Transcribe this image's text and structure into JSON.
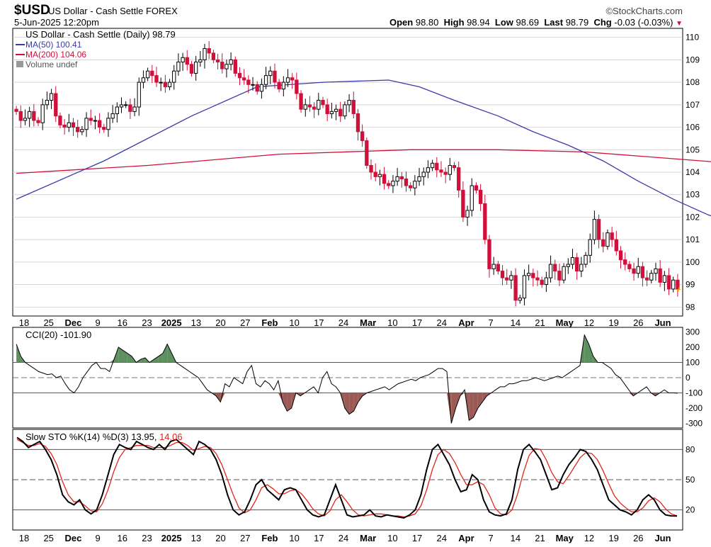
{
  "header": {
    "symbol": "$USD",
    "name": "US Dollar - Cash Settle FOREX",
    "date": "5-Jun-2025 12:20pm",
    "brand": "©StockCharts.com",
    "open_label": "Open",
    "open": "98.80",
    "high_label": "High",
    "high": "98.94",
    "low_label": "Low",
    "low": "98.69",
    "last_label": "Last",
    "last": "98.79",
    "chg_label": "Chg",
    "chg": "-0.03 (-0.03%)"
  },
  "colors": {
    "up": "#000000",
    "down": "#d0103a",
    "ma50": "#3a3aa8",
    "ma200": "#d0103a",
    "cci_pos": "#5e8f5e",
    "cci_neg": "#9b5a55",
    "sto_k": "#000000",
    "sto_d": "#e0251b"
  },
  "chart_data": [
    {
      "type": "candlestick",
      "title": "US Dollar - Cash Settle (Daily) 98.79",
      "legend": [
        "MA(50) 100.41",
        "MA(200) 104.06",
        "Volume undef"
      ],
      "ylim": [
        97.6,
        110.4
      ],
      "yticks": [
        98,
        99,
        100,
        101,
        102,
        103,
        104,
        105,
        106,
        107,
        108,
        109,
        110
      ],
      "xtick_labels": [
        "18",
        "25",
        "Dec",
        "9",
        "16",
        "23",
        "2025",
        "13",
        "20",
        "27",
        "Feb",
        "10",
        "17",
        "24",
        "Mar",
        "10",
        "17",
        "24",
        "Apr",
        "7",
        "14",
        "21",
        "May",
        "12",
        "19",
        "26",
        "Jun"
      ],
      "close": [
        106.7,
        106.3,
        106.4,
        106.7,
        106.3,
        106.2,
        107.0,
        107.2,
        107.5,
        106.5,
        106.1,
        106.0,
        106.2,
        106.0,
        105.8,
        105.9,
        106.4,
        106.3,
        106.3,
        106.0,
        105.9,
        106.4,
        106.6,
        106.9,
        107.0,
        107.0,
        106.7,
        106.9,
        108.0,
        108.2,
        108.5,
        108.3,
        108.0,
        108.0,
        107.8,
        108.0,
        108.5,
        108.9,
        109.1,
        108.8,
        108.4,
        108.9,
        109.0,
        109.5,
        109.3,
        109.0,
        108.9,
        108.6,
        108.8,
        109.0,
        108.4,
        108.2,
        108.1,
        107.9,
        107.9,
        107.6,
        107.9,
        108.3,
        108.5,
        108.0,
        107.7,
        108.0,
        108.2,
        108.1,
        107.5,
        106.8,
        107.0,
        106.9,
        106.8,
        107.2,
        107.0,
        106.6,
        106.7,
        106.8,
        106.5,
        107.0,
        107.2,
        106.6,
        105.8,
        105.4,
        104.3,
        104.0,
        103.8,
        103.9,
        103.5,
        103.4,
        103.6,
        103.8,
        103.7,
        103.4,
        103.3,
        103.6,
        103.8,
        104.0,
        104.2,
        104.4,
        104.1,
        104.0,
        103.9,
        104.3,
        104.2,
        103.2,
        102.0,
        102.3,
        103.4,
        103.2,
        102.6,
        101.0,
        99.7,
        99.9,
        99.6,
        99.3,
        99.2,
        99.4,
        98.3,
        98.4,
        99.4,
        99.5,
        99.3,
        99.2,
        99.0,
        99.3,
        99.9,
        99.6,
        99.2,
        99.8,
        99.9,
        100.2,
        99.6,
        99.9,
        100.3,
        101.0,
        101.9,
        101.0,
        100.7,
        101.3,
        101.0,
        100.5,
        100.1,
        99.9,
        99.7,
        99.5,
        99.8,
        99.3,
        99.2,
        99.5,
        99.7,
        99.1,
        99.4,
        98.8,
        99.2,
        98.79
      ],
      "ma50_start": 102.8,
      "ma50_path": [
        [
          0,
          102.8
        ],
        [
          20,
          104.5
        ],
        [
          40,
          106.5
        ],
        [
          55,
          107.8
        ],
        [
          70,
          108.0
        ],
        [
          85,
          108.1
        ],
        [
          92,
          107.8
        ],
        [
          100,
          107.2
        ],
        [
          110,
          106.5
        ],
        [
          118,
          105.8
        ],
        [
          126,
          105.2
        ],
        [
          134,
          104.5
        ],
        [
          142,
          103.6
        ],
        [
          150,
          102.8
        ],
        [
          158,
          102.1
        ],
        [
          166,
          101.6
        ],
        [
          174,
          101.1
        ],
        [
          178,
          100.9
        ],
        [
          182,
          100.41
        ]
      ],
      "ma200_path": [
        [
          0,
          103.95
        ],
        [
          30,
          104.3
        ],
        [
          60,
          104.8
        ],
        [
          90,
          105.0
        ],
        [
          110,
          105.0
        ],
        [
          130,
          104.9
        ],
        [
          150,
          104.6
        ],
        [
          170,
          104.3
        ],
        [
          182,
          104.06
        ]
      ]
    },
    {
      "type": "area",
      "title": "CCI(20) -101.90",
      "ylim": [
        -330,
        330
      ],
      "yticks": [
        300,
        200,
        100,
        0,
        -100,
        -200,
        -300
      ],
      "values": [
        220,
        140,
        100,
        80,
        60,
        40,
        30,
        20,
        25,
        0,
        10,
        -40,
        -80,
        -100,
        -60,
        0,
        40,
        80,
        100,
        60,
        60,
        40,
        120,
        200,
        180,
        160,
        140,
        100,
        120,
        130,
        100,
        120,
        140,
        160,
        220,
        160,
        100,
        80,
        60,
        40,
        20,
        0,
        -40,
        -80,
        -100,
        -120,
        -160,
        -40,
        -60,
        0,
        -20,
        -40,
        40,
        80,
        -40,
        -60,
        -20,
        -40,
        -80,
        -20,
        -160,
        -220,
        -200,
        -100,
        -120,
        -100,
        -80,
        -60,
        -100,
        0,
        40,
        -40,
        -60,
        -100,
        -200,
        -240,
        -220,
        -160,
        -120,
        -100,
        -90,
        -80,
        -70,
        -60,
        -80,
        -60,
        -40,
        -30,
        -20,
        -10,
        -20,
        0,
        10,
        20,
        40,
        60,
        60,
        40,
        -300,
        -200,
        -120,
        -80,
        -280,
        -260,
        -200,
        -160,
        -120,
        -100,
        -80,
        -60,
        -60,
        -40,
        -40,
        -30,
        -20,
        -20,
        -10,
        0,
        -10,
        -20,
        -10,
        0,
        10,
        0,
        20,
        40,
        60,
        80,
        280,
        220,
        140,
        100,
        100,
        80,
        60,
        20,
        0,
        -40,
        -80,
        -120,
        -100,
        -80,
        -60,
        -100,
        -120,
        -100,
        -80,
        -100,
        -100,
        -101.9
      ]
    },
    {
      "type": "line",
      "title": "Slow STO %K(14) %D(3) 13.95, 14.06",
      "title_black": "Slow STO %K(14) %D(3) 13.95,",
      "title_red": "14.06",
      "ylim": [
        0,
        100
      ],
      "yticks": [
        80,
        50,
        20
      ],
      "k": [
        92,
        88,
        82,
        85,
        88,
        80,
        70,
        55,
        35,
        28,
        25,
        30,
        20,
        16,
        20,
        35,
        55,
        75,
        85,
        82,
        80,
        88,
        85,
        82,
        80,
        85,
        80,
        88,
        90,
        85,
        80,
        75,
        88,
        85,
        80,
        70,
        55,
        35,
        20,
        15,
        18,
        30,
        45,
        50,
        40,
        35,
        30,
        40,
        42,
        40,
        30,
        20,
        15,
        13,
        15,
        30,
        45,
        30,
        15,
        13,
        14,
        15,
        20,
        14,
        13,
        15,
        14,
        13,
        12,
        15,
        20,
        35,
        60,
        80,
        85,
        75,
        65,
        50,
        38,
        40,
        55,
        50,
        30,
        18,
        15,
        14,
        16,
        30,
        60,
        80,
        85,
        78,
        70,
        55,
        40,
        42,
        55,
        65,
        72,
        80,
        78,
        70,
        60,
        45,
        30,
        25,
        20,
        18,
        15,
        20,
        30,
        35,
        30,
        20,
        15,
        14,
        13.95
      ],
      "d": [
        90,
        87,
        84,
        84,
        86,
        83,
        76,
        65,
        48,
        35,
        28,
        28,
        24,
        19,
        18,
        26,
        40,
        58,
        72,
        80,
        82,
        84,
        84,
        84,
        82,
        82,
        82,
        84,
        87,
        87,
        84,
        79,
        81,
        83,
        82,
        76,
        65,
        50,
        35,
        22,
        17,
        20,
        30,
        42,
        45,
        41,
        36,
        36,
        39,
        40,
        36,
        29,
        21,
        16,
        14,
        19,
        30,
        35,
        28,
        20,
        15,
        14,
        15,
        16,
        16,
        15,
        14,
        14,
        13,
        14,
        16,
        24,
        40,
        60,
        75,
        80,
        76,
        67,
        55,
        45,
        45,
        48,
        45,
        35,
        22,
        16,
        15,
        20,
        36,
        57,
        74,
        81,
        80,
        70,
        57,
        48,
        46,
        54,
        63,
        72,
        77,
        76,
        70,
        59,
        46,
        34,
        27,
        22,
        18,
        18,
        22,
        29,
        32,
        28,
        21,
        16,
        14.06
      ]
    }
  ]
}
